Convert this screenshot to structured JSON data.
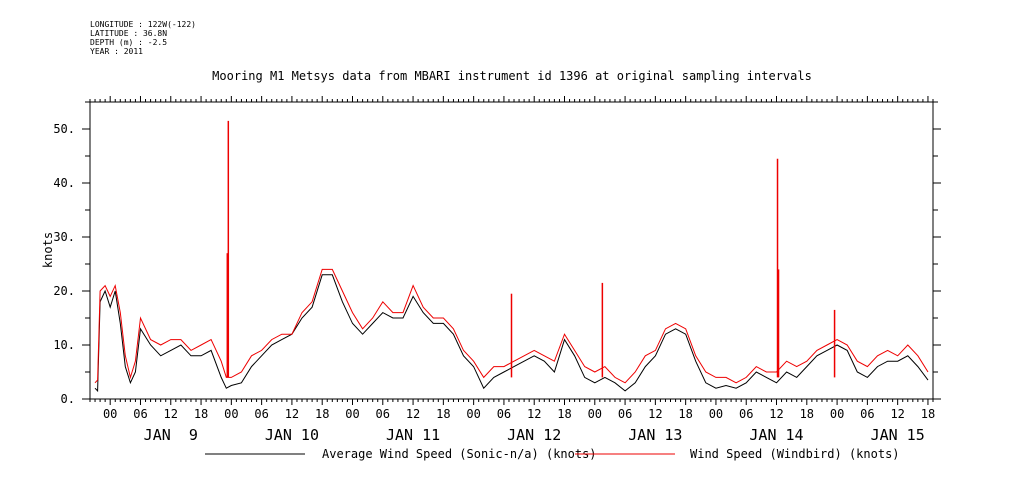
{
  "metadata": {
    "longitude": "LONGITUDE : 122W(-122)",
    "latitude": "LATITUDE : 36.8N",
    "depth": "DEPTH (m) : -2.5",
    "year": "YEAR : 2011"
  },
  "chart_data": {
    "type": "line",
    "title": "Mooring M1 Metsys data from MBARI instrument id 1396 at original sampling intervals",
    "ylabel": "knots",
    "xlabel": "",
    "ylim": [
      0,
      55
    ],
    "xlim_hours": [
      -4,
      163
    ],
    "y_ticks": [
      0,
      10,
      20,
      30,
      40,
      50
    ],
    "y_tick_labels": [
      "0.",
      "10.",
      "20.",
      "30.",
      "40.",
      "50."
    ],
    "x_hour_labels": [
      "00",
      "06",
      "12",
      "18",
      "00",
      "06",
      "12",
      "18",
      "00",
      "06",
      "12",
      "18",
      "00",
      "06",
      "12",
      "18",
      "00",
      "06",
      "12",
      "18",
      "00",
      "06",
      "12",
      "18",
      "00",
      "06",
      "12",
      "18"
    ],
    "x_hour_positions": [
      0,
      6,
      12,
      18,
      24,
      30,
      36,
      42,
      48,
      54,
      60,
      66,
      72,
      78,
      84,
      90,
      96,
      102,
      108,
      114,
      120,
      126,
      132,
      138,
      144,
      150,
      156,
      162
    ],
    "x_day_labels": [
      "JAN  9",
      "JAN 10",
      "JAN 11",
      "JAN 12",
      "JAN 13",
      "JAN 14",
      "JAN 15"
    ],
    "x_day_positions": [
      12,
      36,
      60,
      84,
      108,
      132,
      156
    ],
    "grid": false,
    "legend_placement": "bottom",
    "series": [
      {
        "name": "Average Wind Speed (Sonic-n/a) (knots)",
        "color": "#000000",
        "x": [
          -3,
          -2.5,
          -2,
          -1,
          0,
          1,
          2,
          3,
          4,
          5,
          6,
          8,
          10,
          12,
          14,
          16,
          18,
          20,
          22,
          23,
          24,
          26,
          28,
          30,
          32,
          34,
          36,
          38,
          40,
          42,
          44,
          46,
          48,
          50,
          52,
          54,
          56,
          58,
          60,
          62,
          64,
          66,
          68,
          70,
          72,
          74,
          76,
          78,
          80,
          82,
          84,
          86,
          88,
          90,
          92,
          94,
          96,
          98,
          100,
          102,
          104,
          106,
          108,
          110,
          112,
          114,
          116,
          118,
          120,
          122,
          124,
          126,
          128,
          130,
          132,
          134,
          136,
          138,
          140,
          142,
          144,
          146,
          148,
          150,
          152,
          154,
          156,
          158,
          160,
          162
        ],
        "y": [
          2,
          1.5,
          18,
          20,
          17,
          20,
          14,
          6,
          3,
          5,
          13,
          10,
          8,
          9,
          10,
          8,
          8,
          9,
          4,
          2,
          2.5,
          3,
          6,
          8,
          10,
          11,
          12,
          15,
          17,
          23,
          23,
          18,
          14,
          12,
          14,
          16,
          15,
          15,
          19,
          16,
          14,
          14,
          12,
          8,
          6,
          2,
          4,
          5,
          6,
          7,
          8,
          7,
          5,
          11,
          8,
          4,
          3,
          4,
          3,
          1.5,
          3,
          6,
          8,
          12,
          13,
          12,
          7,
          3,
          2,
          2.5,
          2,
          3,
          5,
          4,
          3,
          5,
          4,
          6,
          8,
          9,
          10,
          9,
          5,
          4,
          6,
          7,
          7,
          8,
          6,
          3.5
        ]
      },
      {
        "name": "Wind Speed (Windbird) (knots)",
        "color": "#ee0000",
        "x": [
          -3,
          -2.5,
          -2,
          -1,
          0,
          1,
          2,
          3,
          4,
          5,
          6,
          8,
          10,
          12,
          14,
          16,
          18,
          20,
          22,
          23,
          24,
          26,
          28,
          30,
          32,
          34,
          36,
          38,
          40,
          42,
          44,
          46,
          48,
          50,
          52,
          54,
          56,
          58,
          60,
          62,
          64,
          66,
          68,
          70,
          72,
          74,
          76,
          78,
          80,
          82,
          84,
          86,
          88,
          90,
          92,
          94,
          96,
          98,
          100,
          102,
          104,
          106,
          108,
          110,
          112,
          114,
          116,
          118,
          120,
          122,
          124,
          126,
          128,
          130,
          132,
          134,
          136,
          138,
          140,
          142,
          144,
          146,
          148,
          150,
          152,
          154,
          156,
          158,
          160,
          162
        ],
        "y": [
          3,
          3.5,
          20,
          21,
          19,
          21,
          16,
          8,
          4,
          7,
          15,
          11,
          10,
          11,
          11,
          9,
          10,
          11,
          7,
          4,
          4,
          5,
          8,
          9,
          11,
          12,
          12,
          16,
          18,
          24,
          24,
          20,
          16,
          13,
          15,
          18,
          16,
          16,
          21,
          17,
          15,
          15,
          13,
          9,
          7,
          4,
          6,
          6,
          7,
          8,
          9,
          8,
          7,
          12,
          9,
          6,
          5,
          6,
          4,
          3,
          5,
          8,
          9,
          13,
          14,
          13,
          8,
          5,
          4,
          4,
          3,
          4,
          6,
          5,
          5,
          7,
          6,
          7,
          9,
          10,
          11,
          10,
          7,
          6,
          8,
          9,
          8,
          10,
          8,
          5
        ],
        "spikes": [
          {
            "x": 23.4,
            "y": 51.5
          },
          {
            "x": 23.2,
            "y": 27
          },
          {
            "x": 79.5,
            "y": 19.5
          },
          {
            "x": 97.5,
            "y": 21.5
          },
          {
            "x": 132.2,
            "y": 44.5
          },
          {
            "x": 132.4,
            "y": 24
          },
          {
            "x": 143.5,
            "y": 16.5
          }
        ]
      }
    ]
  }
}
